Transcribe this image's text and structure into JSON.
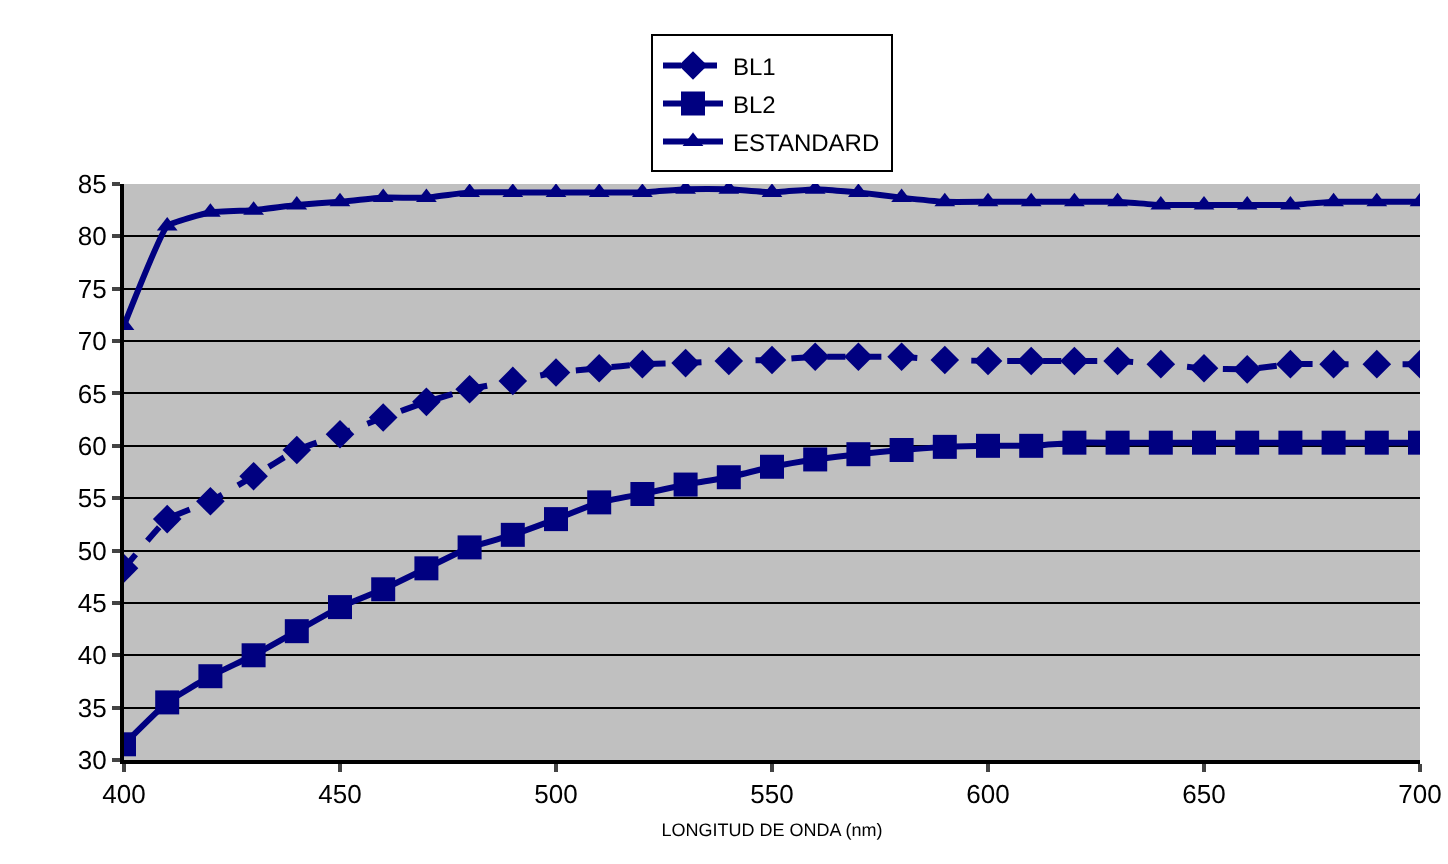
{
  "chart_data": {
    "type": "line",
    "xlabel": "LONGITUD DE ONDA (nm)",
    "x": [
      400,
      410,
      420,
      430,
      440,
      450,
      460,
      470,
      480,
      490,
      500,
      510,
      520,
      530,
      540,
      550,
      560,
      570,
      580,
      590,
      600,
      610,
      620,
      630,
      640,
      650,
      660,
      670,
      680,
      690,
      700
    ],
    "xlim": [
      400,
      700
    ],
    "xticks": [
      400,
      450,
      500,
      550,
      600,
      650,
      700
    ],
    "ylim": [
      30,
      85
    ],
    "yticks": [
      30,
      35,
      40,
      45,
      50,
      55,
      60,
      65,
      70,
      75,
      80,
      85
    ],
    "grid": "y",
    "legend": "top",
    "series": [
      {
        "name": "BL1",
        "color": "#000080",
        "marker": "diamond",
        "line_style": "dashed",
        "values": [
          48.3,
          53,
          54.7,
          57.1,
          59.6,
          61.1,
          62.7,
          64.2,
          65.4,
          66.2,
          67,
          67.4,
          67.8,
          67.9,
          68.1,
          68.2,
          68.5,
          68.5,
          68.5,
          68.2,
          68.1,
          68.1,
          68.1,
          68.1,
          67.8,
          67.4,
          67.3,
          67.8,
          67.8,
          67.8,
          67.8
        ]
      },
      {
        "name": "BL2",
        "color": "#000080",
        "marker": "square",
        "line_style": "solid",
        "values": [
          31.5,
          35.5,
          38,
          40,
          42.3,
          44.6,
          46.3,
          48.3,
          50.3,
          51.5,
          53,
          54.6,
          55.4,
          56.3,
          57,
          58,
          58.7,
          59.2,
          59.6,
          59.9,
          60,
          60,
          60.3,
          60.3,
          60.3,
          60.3,
          60.3,
          60.3,
          60.3,
          60.3,
          60.3
        ]
      },
      {
        "name": "ESTANDARD",
        "color": "#000080",
        "marker": "triangle",
        "line_style": "solid",
        "values": [
          71.5,
          81,
          82.3,
          82.5,
          83,
          83.3,
          83.7,
          83.7,
          84.2,
          84.2,
          84.2,
          84.2,
          84.2,
          84.5,
          84.5,
          84.2,
          84.5,
          84.2,
          83.7,
          83.3,
          83.3,
          83.3,
          83.3,
          83.3,
          83,
          83,
          83,
          83,
          83.3,
          83.3,
          83.3
        ]
      }
    ]
  }
}
